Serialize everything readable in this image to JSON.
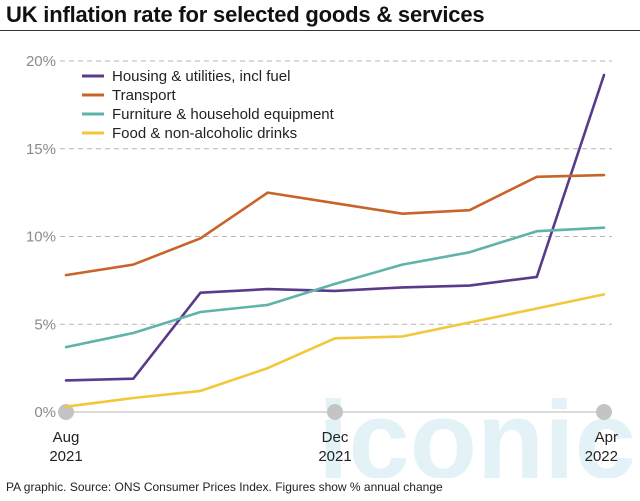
{
  "title": "UK inflation rate for selected goods & services",
  "source": "PA graphic. Source: ONS Consumer Prices Index. Figures show % annual change",
  "watermark_text": "iconic",
  "chart_data": {
    "type": "line",
    "title": "UK inflation rate for selected goods & services",
    "x": [
      "Aug 2021",
      "Sep 2021",
      "Oct 2021",
      "Nov 2021",
      "Dec 2021",
      "Jan 2022",
      "Feb 2022",
      "Mar 2022",
      "Apr 2022"
    ],
    "xticks": [
      {
        "index": 0,
        "line1": "Aug",
        "line2": "2021"
      },
      {
        "index": 4,
        "line1": "Dec",
        "line2": "2021"
      },
      {
        "index": 8,
        "line1": "Apr",
        "line2": "2022"
      }
    ],
    "ylim": [
      0,
      20
    ],
    "yticks": [
      0,
      5,
      10,
      15,
      20
    ],
    "ytick_labels": [
      "0%",
      "5%",
      "10%",
      "15%",
      "20%"
    ],
    "grid": "horizontal dashed",
    "legend": "top-left",
    "series": [
      {
        "name": "Housing & utilities, incl fuel",
        "color": "#5b3a8c",
        "values": [
          1.8,
          1.9,
          6.8,
          7.0,
          6.9,
          7.1,
          7.2,
          7.7,
          19.2
        ]
      },
      {
        "name": "Transport",
        "color": "#c8642a",
        "values": [
          7.8,
          8.4,
          9.9,
          12.5,
          11.9,
          11.3,
          11.5,
          13.4,
          13.5
        ]
      },
      {
        "name": "Furniture & household equipment",
        "color": "#5fb3a8",
        "values": [
          3.7,
          4.5,
          5.7,
          6.1,
          7.3,
          8.4,
          9.1,
          10.3,
          10.5
        ]
      },
      {
        "name": "Food & non-alcoholic drinks",
        "color": "#f2c73a",
        "values": [
          0.3,
          0.8,
          1.2,
          2.5,
          4.2,
          4.3,
          5.1,
          5.9,
          6.7
        ]
      }
    ]
  }
}
